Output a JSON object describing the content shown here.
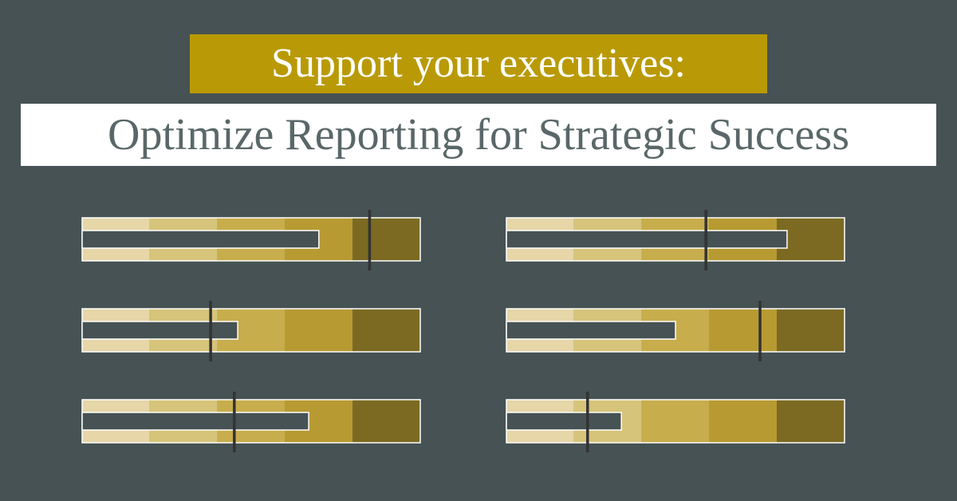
{
  "header": {
    "line1": "Support your executives:",
    "line2": "Optimize Reporting for Strategic Success"
  },
  "colors": {
    "background": "#465253",
    "accent": "#b99a06",
    "band_colors": [
      "#e6d6a8",
      "#d7c47b",
      "#c8ad4d",
      "#b89a32",
      "#7c6a22"
    ],
    "bar": "#465253",
    "target": "#333333"
  },
  "chart_data": {
    "type": "bullet",
    "title": "",
    "xlim": [
      0,
      100
    ],
    "grid": false,
    "ranges": [
      20,
      40,
      60,
      80,
      100
    ],
    "bullets": [
      {
        "value": 70,
        "target": 85,
        "shaded_bands": 5
      },
      {
        "value": 83,
        "target": 59,
        "shaded_bands": 5
      },
      {
        "value": 46,
        "target": 38,
        "shaded_bands": 5
      },
      {
        "value": 50,
        "target": 75,
        "shaded_bands": 5
      },
      {
        "value": 67,
        "target": 45,
        "shaded_bands": 5
      },
      {
        "value": 34,
        "target": 24,
        "shaded_bands": 5
      }
    ]
  }
}
